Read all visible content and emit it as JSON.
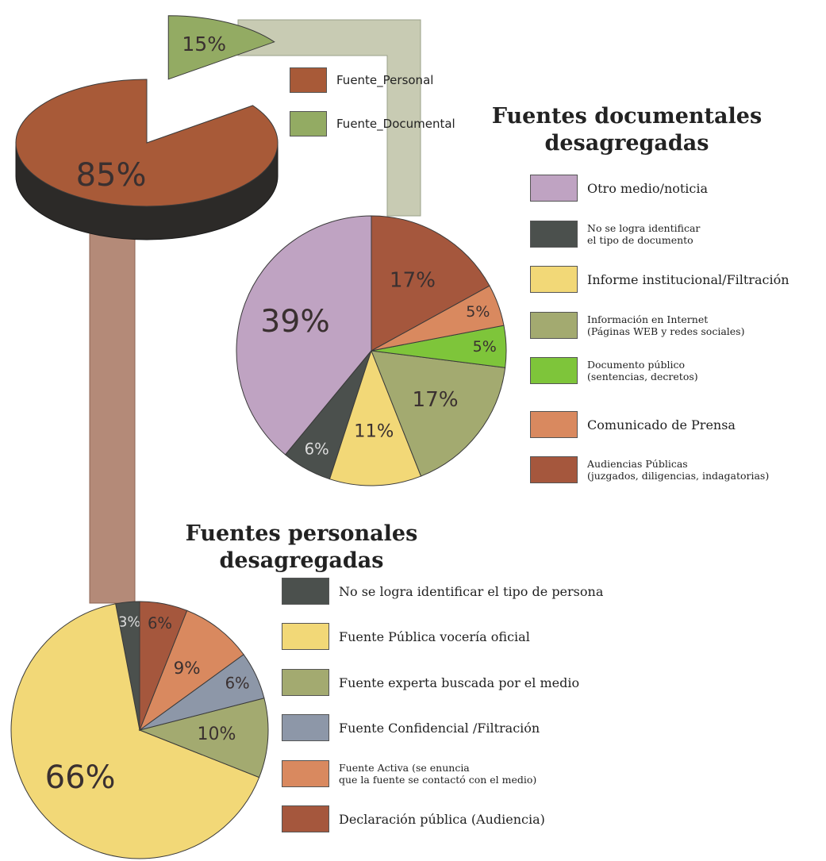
{
  "chart_data": [
    {
      "type": "pie",
      "three_d": true,
      "categories": [
        "Fuente_Personal",
        "Fuente_Documental"
      ],
      "values": [
        85,
        15
      ],
      "value_labels": [
        "85%",
        "15%"
      ],
      "colors": [
        "#a85a38",
        "#93ab63"
      ],
      "exploded": [
        false,
        true
      ]
    },
    {
      "type": "pie",
      "title": "Fuentes documentales\ndesagregadas",
      "categories": [
        "Otro medio/noticia",
        "No se logra identificar\nel tipo de documento",
        "Informe institucional/Filtración",
        "Información en Internet\n(Páginas WEB y redes sociales)",
        "Documento público\n(sentencias, decretos)",
        "Comunicado de Prensa",
        "Audiencias Públicas\n(juzgados, diligencias, indagatorias)"
      ],
      "values": [
        39,
        6,
        11,
        17,
        5,
        5,
        17
      ],
      "value_labels": [
        "39%",
        "6%",
        "11%",
        "17%",
        "5%",
        "5%",
        "17%"
      ],
      "colors": [
        "#bfa3c2",
        "#4b504d",
        "#f2d877",
        "#a3aa70",
        "#7ec53a",
        "#d9895f",
        "#a5573d"
      ]
    },
    {
      "type": "pie",
      "title": "Fuentes personales\ndesagregadas",
      "categories": [
        "No se logra identificar el tipo de persona",
        "Fuente Pública vocería oficial",
        "Fuente experta buscada por el medio",
        "Fuente Confidencial /Filtración",
        "Fuente Activa (se enuncia\nque la fuente se contactó con el medio)",
        "Declaración pública (Audiencia)"
      ],
      "values": [
        3,
        66,
        10,
        6,
        9,
        6
      ],
      "value_labels": [
        "3%",
        "66%",
        "10%",
        "6%",
        "9%",
        "6%"
      ],
      "colors": [
        "#4b504d",
        "#f2d877",
        "#a3aa70",
        "#8d97a8",
        "#d9895f",
        "#a5573d"
      ]
    }
  ]
}
